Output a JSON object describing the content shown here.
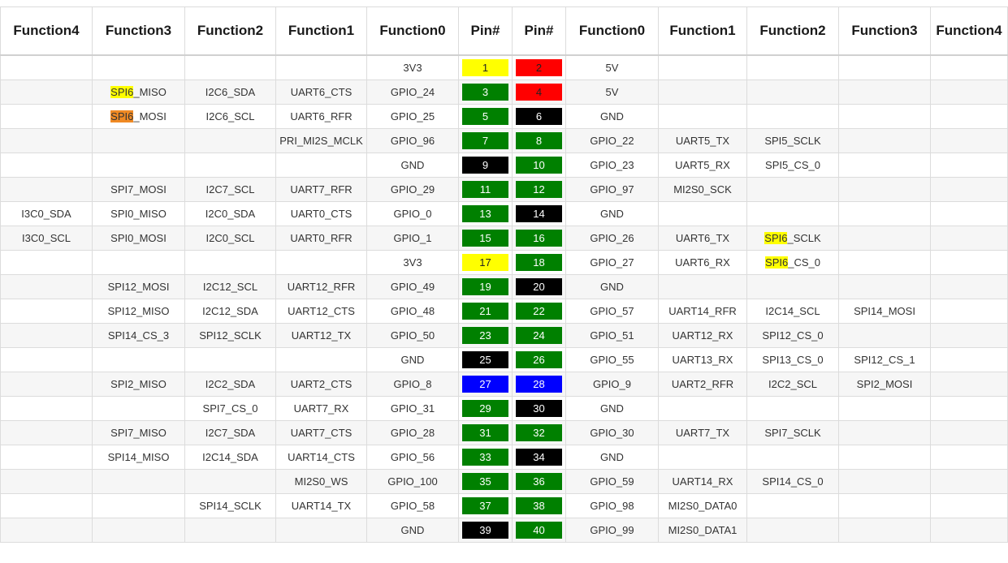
{
  "headers": [
    "Function4",
    "Function3",
    "Function2",
    "Function1",
    "Function0",
    "Pin#",
    "Pin#",
    "Function0",
    "Function1",
    "Function2",
    "Function3",
    "Function4"
  ],
  "colors": {
    "yellow": "#ffff00",
    "red": "#ff0000",
    "green": "#008000",
    "black": "#000000",
    "blue": "#0000ff",
    "highlight_yellow": "#ffff00",
    "highlight_orange": "#f08a24"
  },
  "rows": [
    {
      "l4": "",
      "l3": "",
      "l2": "",
      "l1": "",
      "l0": "3V3",
      "pin_l": "1",
      "pin_l_color": "yellow",
      "pin_r": "2",
      "pin_r_color": "red",
      "r0": "5V",
      "r1": "",
      "r2": "",
      "r3": "",
      "r4": ""
    },
    {
      "l4": "",
      "l3": "SPI6_MISO",
      "l2": "I2C6_SDA",
      "l1": "UART6_CTS",
      "l0": "GPIO_24",
      "pin_l": "3",
      "pin_l_color": "green",
      "pin_r": "4",
      "pin_r_color": "red",
      "r0": "5V",
      "r1": "",
      "r2": "",
      "r3": "",
      "r4": ""
    },
    {
      "l4": "",
      "l3": "SPI6_MOSI",
      "l2": "I2C6_SCL",
      "l1": "UART6_RFR",
      "l0": "GPIO_25",
      "pin_l": "5",
      "pin_l_color": "green",
      "pin_r": "6",
      "pin_r_color": "black",
      "r0": "GND",
      "r1": "",
      "r2": "",
      "r3": "",
      "r4": ""
    },
    {
      "l4": "",
      "l3": "",
      "l2": "",
      "l1": "PRI_MI2S_MCLK",
      "l0": "GPIO_96",
      "pin_l": "7",
      "pin_l_color": "green",
      "pin_r": "8",
      "pin_r_color": "green",
      "r0": "GPIO_22",
      "r1": "UART5_TX",
      "r2": "SPI5_SCLK",
      "r3": "",
      "r4": ""
    },
    {
      "l4": "",
      "l3": "",
      "l2": "",
      "l1": "",
      "l0": "GND",
      "pin_l": "9",
      "pin_l_color": "black",
      "pin_r": "10",
      "pin_r_color": "green",
      "r0": "GPIO_23",
      "r1": "UART5_RX",
      "r2": "SPI5_CS_0",
      "r3": "",
      "r4": ""
    },
    {
      "l4": "",
      "l3": "SPI7_MOSI",
      "l2": "I2C7_SCL",
      "l1": "UART7_RFR",
      "l0": "GPIO_29",
      "pin_l": "11",
      "pin_l_color": "green",
      "pin_r": "12",
      "pin_r_color": "green",
      "r0": "GPIO_97",
      "r1": "MI2S0_SCK",
      "r2": "",
      "r3": "",
      "r4": ""
    },
    {
      "l4": "I3C0_SDA",
      "l3": "SPI0_MISO",
      "l2": "I2C0_SDA",
      "l1": "UART0_CTS",
      "l0": "GPIO_0",
      "pin_l": "13",
      "pin_l_color": "green",
      "pin_r": "14",
      "pin_r_color": "black",
      "r0": "GND",
      "r1": "",
      "r2": "",
      "r3": "",
      "r4": ""
    },
    {
      "l4": "I3C0_SCL",
      "l3": "SPI0_MOSI",
      "l2": "I2C0_SCL",
      "l1": "UART0_RFR",
      "l0": "GPIO_1",
      "pin_l": "15",
      "pin_l_color": "green",
      "pin_r": "16",
      "pin_r_color": "green",
      "r0": "GPIO_26",
      "r1": "UART6_TX",
      "r2": "SPI6_SCLK",
      "r3": "",
      "r4": ""
    },
    {
      "l4": "",
      "l3": "",
      "l2": "",
      "l1": "",
      "l0": "3V3",
      "pin_l": "17",
      "pin_l_color": "yellow",
      "pin_r": "18",
      "pin_r_color": "green",
      "r0": "GPIO_27",
      "r1": "UART6_RX",
      "r2": "SPI6_CS_0",
      "r3": "",
      "r4": ""
    },
    {
      "l4": "",
      "l3": "SPI12_MOSI",
      "l2": "I2C12_SCL",
      "l1": "UART12_RFR",
      "l0": "GPIO_49",
      "pin_l": "19",
      "pin_l_color": "green",
      "pin_r": "20",
      "pin_r_color": "black",
      "r0": "GND",
      "r1": "",
      "r2": "",
      "r3": "",
      "r4": ""
    },
    {
      "l4": "",
      "l3": "SPI12_MISO",
      "l2": "I2C12_SDA",
      "l1": "UART12_CTS",
      "l0": "GPIO_48",
      "pin_l": "21",
      "pin_l_color": "green",
      "pin_r": "22",
      "pin_r_color": "green",
      "r0": "GPIO_57",
      "r1": "UART14_RFR",
      "r2": "I2C14_SCL",
      "r3": "SPI14_MOSI",
      "r4": ""
    },
    {
      "l4": "",
      "l3": "SPI14_CS_3",
      "l2": "SPI12_SCLK",
      "l1": "UART12_TX",
      "l0": "GPIO_50",
      "pin_l": "23",
      "pin_l_color": "green",
      "pin_r": "24",
      "pin_r_color": "green",
      "r0": "GPIO_51",
      "r1": "UART12_RX",
      "r2": "SPI12_CS_0",
      "r3": "",
      "r4": ""
    },
    {
      "l4": "",
      "l3": "",
      "l2": "",
      "l1": "",
      "l0": "GND",
      "pin_l": "25",
      "pin_l_color": "black",
      "pin_r": "26",
      "pin_r_color": "green",
      "r0": "GPIO_55",
      "r1": "UART13_RX",
      "r2": "SPI13_CS_0",
      "r3": "SPI12_CS_1",
      "r4": ""
    },
    {
      "l4": "",
      "l3": "SPI2_MISO",
      "l2": "I2C2_SDA",
      "l1": "UART2_CTS",
      "l0": "GPIO_8",
      "pin_l": "27",
      "pin_l_color": "blue",
      "pin_r": "28",
      "pin_r_color": "blue",
      "r0": "GPIO_9",
      "r1": "UART2_RFR",
      "r2": "I2C2_SCL",
      "r3": "SPI2_MOSI",
      "r4": ""
    },
    {
      "l4": "",
      "l3": "",
      "l2": "SPI7_CS_0",
      "l1": "UART7_RX",
      "l0": "GPIO_31",
      "pin_l": "29",
      "pin_l_color": "green",
      "pin_r": "30",
      "pin_r_color": "black",
      "r0": "GND",
      "r1": "",
      "r2": "",
      "r3": "",
      "r4": ""
    },
    {
      "l4": "",
      "l3": "SPI7_MISO",
      "l2": "I2C7_SDA",
      "l1": "UART7_CTS",
      "l0": "GPIO_28",
      "pin_l": "31",
      "pin_l_color": "green",
      "pin_r": "32",
      "pin_r_color": "green",
      "r0": "GPIO_30",
      "r1": "UART7_TX",
      "r2": "SPI7_SCLK",
      "r3": "",
      "r4": ""
    },
    {
      "l4": "",
      "l3": "SPI14_MISO",
      "l2": "I2C14_SDA",
      "l1": "UART14_CTS",
      "l0": "GPIO_56",
      "pin_l": "33",
      "pin_l_color": "green",
      "pin_r": "34",
      "pin_r_color": "black",
      "r0": "GND",
      "r1": "",
      "r2": "",
      "r3": "",
      "r4": ""
    },
    {
      "l4": "",
      "l3": "",
      "l2": "",
      "l1": "MI2S0_WS",
      "l0": "GPIO_100",
      "pin_l": "35",
      "pin_l_color": "green",
      "pin_r": "36",
      "pin_r_color": "green",
      "r0": "GPIO_59",
      "r1": "UART14_RX",
      "r2": "SPI14_CS_0",
      "r3": "",
      "r4": ""
    },
    {
      "l4": "",
      "l3": "",
      "l2": "SPI14_SCLK",
      "l1": "UART14_TX",
      "l0": "GPIO_58",
      "pin_l": "37",
      "pin_l_color": "green",
      "pin_r": "38",
      "pin_r_color": "green",
      "r0": "GPIO_98",
      "r1": "MI2S0_DATA0",
      "r2": "",
      "r3": "",
      "r4": ""
    },
    {
      "l4": "",
      "l3": "",
      "l2": "",
      "l1": "",
      "l0": "GND",
      "pin_l": "39",
      "pin_l_color": "black",
      "pin_r": "40",
      "pin_r_color": "green",
      "r0": "GPIO_99",
      "r1": "MI2S0_DATA1",
      "r2": "",
      "r3": "",
      "r4": ""
    }
  ],
  "highlights": [
    {
      "text": "SPI6_MISO",
      "prefix": "SPI6",
      "color": "highlight_yellow"
    },
    {
      "text": "SPI6_MOSI",
      "prefix": "SPI6",
      "color": "highlight_orange"
    },
    {
      "text": "SPI6_SCLK",
      "prefix": "SPI6",
      "color": "highlight_yellow"
    },
    {
      "text": "SPI6_CS_0",
      "prefix": "SPI6",
      "color": "highlight_yellow"
    }
  ]
}
